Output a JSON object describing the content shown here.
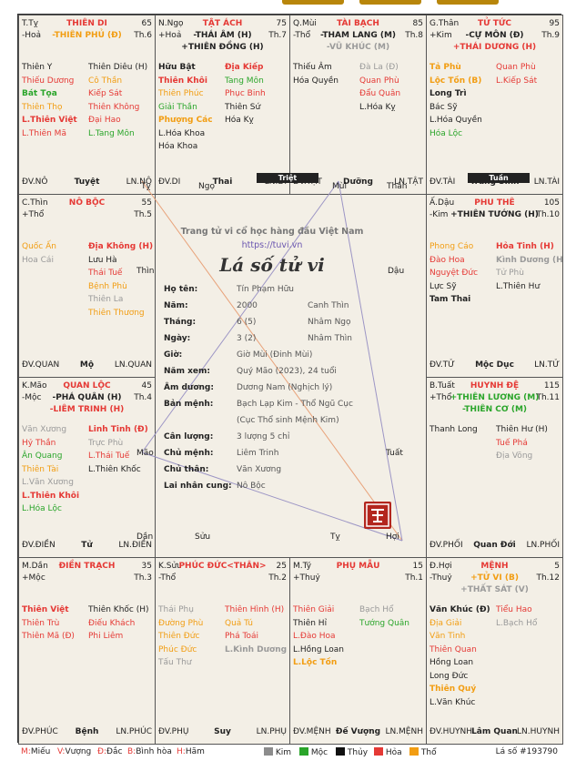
{
  "colors": {
    "kim": "#8c8c8c",
    "moc": "#2aa52a",
    "thuy": "#111111",
    "hoa": "#e53935",
    "tho": "#f29d12"
  },
  "cells": [
    {
      "id": "ty",
      "name": "T.Tỵ",
      "palace": "THIÊN DI",
      "palace_color": "red",
      "age": "65",
      "element": "-Hoả",
      "main_star": "-THIÊN PHỦ (Đ)",
      "main_color": "org",
      "sub": "",
      "thang": "Th.6",
      "left": [
        {
          "t": "Thiên Y",
          "c": "blk"
        },
        {
          "t": "Thiếu Dương",
          "c": "red"
        },
        {
          "t": "Bát Tọa",
          "c": "grn",
          "b": 1
        },
        {
          "t": "Thiên Thọ",
          "c": "org"
        },
        {
          "t": "L.Thiên Việt",
          "c": "red",
          "b": 1
        },
        {
          "t": "L.Thiên Mã",
          "c": "red"
        }
      ],
      "right": [
        {
          "t": "Thiên Diêu (H)",
          "c": "blk"
        },
        {
          "t": "Cô Thần",
          "c": "org"
        },
        {
          "t": "Kiếp Sát",
          "c": "red"
        },
        {
          "t": "Thiên Không",
          "c": "red"
        },
        {
          "t": "Đại Hao",
          "c": "red"
        },
        {
          "t": "L.Tang Môn",
          "c": "grn"
        }
      ],
      "f1": "ĐV.NÔ",
      "f2": "Tuyệt",
      "f3": "LN.NÔ"
    },
    {
      "id": "ngo",
      "name": "N.Ngọ",
      "palace": "TẬT ÁCH",
      "palace_color": "red",
      "age": "75",
      "element": "+Hoả",
      "main_star": "-THÁI ÂM (H)",
      "main_color": "blk",
      "sub": "+THIÊN ĐỒNG (H)",
      "sub_color": "blk",
      "thang": "Th.7",
      "left": [
        {
          "t": "Hữu Bật",
          "c": "blk",
          "b": 1
        },
        {
          "t": "Thiên Khôi",
          "c": "red",
          "b": 1
        },
        {
          "t": "Thiên Phúc",
          "c": "org"
        },
        {
          "t": "Giải Thần",
          "c": "grn"
        },
        {
          "t": "Phượng Các",
          "c": "org",
          "b": 1
        },
        {
          "t": "L.Hóa Khoa",
          "c": "blk"
        },
        {
          "t": "Hóa Khoa",
          "c": "blk"
        }
      ],
      "right": [
        {
          "t": "Địa Kiếp",
          "c": "red",
          "b": 1
        },
        {
          "t": "Tang Môn",
          "c": "grn"
        },
        {
          "t": "Phục Binh",
          "c": "red"
        },
        {
          "t": "Thiên Sứ",
          "c": "blk"
        },
        {
          "t": "Hóa Kỵ",
          "c": "blk"
        }
      ],
      "f1": "ĐV.DI",
      "f2": "Thai",
      "f3": "LN.DI"
    },
    {
      "id": "mui",
      "name": "Q.Mùi",
      "palace": "TÀI BẠCH",
      "palace_color": "org",
      "age": "85",
      "element": "-Thổ",
      "main_star": "-THAM LANG (M)",
      "main_color": "blk",
      "sub": "-VŨ KHÚC (M)",
      "sub_color": "gry",
      "thang": "Th.8",
      "left": [
        {
          "t": "Thiếu Âm",
          "c": "blk"
        },
        {
          "t": "Hóa Quyền",
          "c": "blk"
        }
      ],
      "right": [
        {
          "t": "Đà La (Đ)",
          "c": "gry"
        },
        {
          "t": "Quan Phù",
          "c": "red"
        },
        {
          "t": "Đẩu Quân",
          "c": "red"
        },
        {
          "t": "L.Hóa Kỵ",
          "c": "blk"
        }
      ],
      "f1": "ĐV.TẬT",
      "f2": "Dưỡng",
      "f3": "LN.TẬT"
    },
    {
      "id": "than",
      "name": "G.Thân",
      "palace": "TỬ TỨC",
      "palace_color": "gry",
      "age": "95",
      "element": "+Kim",
      "main_star": "-CỰ MÔN (Đ)",
      "main_color": "blk",
      "sub": "+THÁI DƯƠNG (H)",
      "sub_color": "red",
      "thang": "Th.9",
      "left": [
        {
          "t": "Tả Phù",
          "c": "org",
          "b": 1
        },
        {
          "t": "Lộc Tồn (B)",
          "c": "org",
          "b": 1
        },
        {
          "t": "Long Trì",
          "c": "blk",
          "b": 1
        },
        {
          "t": "Bác Sỹ",
          "c": "blk"
        },
        {
          "t": "L.Hóa Quyền",
          "c": "blk"
        },
        {
          "t": "Hóa Lộc",
          "c": "grn"
        }
      ],
      "right": [
        {
          "t": "Quan Phù",
          "c": "red"
        },
        {
          "t": "L.Kiếp Sát",
          "c": "red"
        }
      ],
      "f1": "ĐV.TÀI",
      "f2": "Tràng Sinh",
      "f3": "LN.TÀI"
    },
    {
      "id": "thin",
      "name": "C.Thìn",
      "palace": "NÔ BỘC",
      "palace_color": "org",
      "age": "55",
      "element": "+Thổ",
      "main_star": "",
      "sub": "",
      "thang": "Th.5",
      "left": [
        {
          "t": "Quốc Ấn",
          "c": "org"
        },
        {
          "t": "Hoa Cái",
          "c": "gry"
        }
      ],
      "right": [
        {
          "t": "Địa Không (H)",
          "c": "red",
          "b": 1
        },
        {
          "t": "Lưu Hà",
          "c": "blk"
        },
        {
          "t": "Thái Tuế",
          "c": "red"
        },
        {
          "t": "Bệnh Phù",
          "c": "org"
        },
        {
          "t": "Thiên La",
          "c": "gry"
        },
        {
          "t": "Thiên Thương",
          "c": "org"
        }
      ],
      "f1": "ĐV.QUAN",
      "f2": "Mộ",
      "f3": "LN.QUAN"
    },
    {
      "id": "dau",
      "name": "Ấ.Dậu",
      "palace": "PHU THÊ",
      "palace_color": "gry",
      "age": "105",
      "element": "-Kim",
      "main_star": "+THIÊN TƯỚNG (H)",
      "main_color": "blk",
      "sub": "",
      "thang": "Th.10",
      "left": [
        {
          "t": "Phong Cáo",
          "c": "org"
        },
        {
          "t": "Đào Hoa",
          "c": "red"
        },
        {
          "t": "Nguyệt Đức",
          "c": "red"
        },
        {
          "t": "Lực Sỹ",
          "c": "blk"
        },
        {
          "t": "Tam Thai",
          "c": "blk",
          "b": 1
        }
      ],
      "right": [
        {
          "t": "Hỏa Tinh (H)",
          "c": "red",
          "b": 1
        },
        {
          "t": "Kình Dương (H)",
          "c": "gry",
          "b": 1
        },
        {
          "t": "Tử Phù",
          "c": "gry"
        },
        {
          "t": "L.Thiên Hư",
          "c": "blk"
        }
      ],
      "f1": "ĐV.TỬ",
      "f2": "Mộc Dục",
      "f3": "LN.TỬ"
    },
    {
      "id": "mao",
      "name": "K.Mão",
      "palace": "QUAN LỘC",
      "palace_color": "grn",
      "age": "45",
      "element": "-Mộc",
      "main_star": "-PHÁ QUÂN (H)",
      "main_color": "blk",
      "sub": "-LIÊM TRINH (H)",
      "sub_color": "red",
      "thang": "Th.4",
      "left": [
        {
          "t": "Văn Xương",
          "c": "gry"
        },
        {
          "t": "Hỷ Thần",
          "c": "red"
        },
        {
          "t": "Ân Quang",
          "c": "grn"
        },
        {
          "t": "Thiên Tài",
          "c": "org"
        },
        {
          "t": "L.Văn Xương",
          "c": "gry"
        },
        {
          "t": "L.Thiên Khôi",
          "c": "red",
          "b": 1
        },
        {
          "t": "L.Hóa Lộc",
          "c": "grn"
        }
      ],
      "right": [
        {
          "t": "Linh Tinh (Đ)",
          "c": "red",
          "b": 1
        },
        {
          "t": "Trực Phù",
          "c": "gry"
        },
        {
          "t": "L.Thái Tuế",
          "c": "red"
        },
        {
          "t": "L.Thiên Khốc",
          "c": "blk"
        }
      ],
      "f1": "ĐV.ĐIỀN",
      "f2": "Tử",
      "f3": "LN.ĐIỀN"
    },
    {
      "id": "tuat",
      "name": "B.Tuất",
      "palace": "HUYNH ĐỆ",
      "palace_color": "org",
      "age": "115",
      "element": "+Thổ",
      "main_star": "+THIÊN LƯƠNG (M)",
      "main_color": "grn",
      "sub": "-THIÊN CƠ (M)",
      "sub_color": "grn",
      "thang": "Th.11",
      "left": [
        {
          "t": "Thanh Long",
          "c": "blk"
        }
      ],
      "right": [
        {
          "t": "Thiên Hư (H)",
          "c": "blk"
        },
        {
          "t": "Tuế Phá",
          "c": "red"
        },
        {
          "t": "Địa Võng",
          "c": "gry"
        }
      ],
      "f1": "ĐV.PHỐI",
      "f2": "Quan Đới",
      "f3": "LN.PHỐI"
    },
    {
      "id": "dan",
      "name": "M.Dần",
      "palace": "ĐIỀN TRẠCH",
      "palace_color": "grn",
      "age": "35",
      "element": "+Mộc",
      "main_star": "",
      "sub": "",
      "thang": "Th.3",
      "left": [
        {
          "t": "Thiên Việt",
          "c": "red",
          "b": 1
        },
        {
          "t": "Thiên Trù",
          "c": "red"
        },
        {
          "t": "Thiên Mã (Đ)",
          "c": "red"
        }
      ],
      "right": [
        {
          "t": "Thiên Khốc (H)",
          "c": "blk"
        },
        {
          "t": "Điếu Khách",
          "c": "red"
        },
        {
          "t": "Phi Liêm",
          "c": "red"
        }
      ],
      "f1": "ĐV.PHÚC",
      "f2": "Bệnh",
      "f3": "LN.PHÚC"
    },
    {
      "id": "suu",
      "name": "K.Sửu",
      "palace": "PHÚC ĐỨC<THÂN>",
      "palace_color": "org",
      "age": "25",
      "element": "-Thổ",
      "main_star": "",
      "sub": "",
      "thang": "Th.2",
      "left": [
        {
          "t": "Thái Phụ",
          "c": "gry"
        },
        {
          "t": "Đường Phù",
          "c": "org"
        },
        {
          "t": "Thiên Đức",
          "c": "org"
        },
        {
          "t": "Phúc Đức",
          "c": "org"
        },
        {
          "t": "Tấu Thư",
          "c": "gry"
        }
      ],
      "right": [
        {
          "t": "Thiên Hình (H)",
          "c": "red"
        },
        {
          "t": "Quả Tú",
          "c": "org"
        },
        {
          "t": "Phá Toái",
          "c": "red"
        },
        {
          "t": "L.Kình Dương",
          "c": "gry",
          "b": 1
        }
      ],
      "f1": "ĐV.PHỤ",
      "f2": "Suy",
      "f3": "LN.PHỤ"
    },
    {
      "id": "ti",
      "name": "M.Tý",
      "palace": "PHỤ MẪU",
      "palace_color": "blk",
      "age": "15",
      "element": "+Thuỷ",
      "main_star": "",
      "sub": "",
      "thang": "Th.1",
      "left": [
        {
          "t": "Thiên Giải",
          "c": "red"
        },
        {
          "t": "Thiên Hỉ",
          "c": "blk"
        },
        {
          "t": "L.Đào Hoa",
          "c": "red"
        },
        {
          "t": "L.Hồng Loan",
          "c": "blk"
        },
        {
          "t": "L.Lộc Tồn",
          "c": "org",
          "b": 1
        }
      ],
      "right": [
        {
          "t": "Bạch Hổ",
          "c": "gry"
        },
        {
          "t": "Tướng Quân",
          "c": "grn"
        }
      ],
      "f1": "ĐV.MỆNH",
      "f2": "Đế Vượng",
      "f3": "LN.MỆNH"
    },
    {
      "id": "hoi",
      "name": "Đ.Hợi",
      "palace": "MỆNH",
      "palace_color": "blk",
      "age": "5",
      "element": "-Thuỷ",
      "main_star": "+TỬ VI (B)",
      "main_color": "org",
      "sub": "+THẤT SÁT (V)",
      "sub_color": "gry",
      "thang": "Th.12",
      "left": [
        {
          "t": "Văn Khúc (Đ)",
          "c": "blk",
          "b": 1
        },
        {
          "t": "Địa Giải",
          "c": "org"
        },
        {
          "t": "Văn Tinh",
          "c": "org"
        },
        {
          "t": "Thiên Quan",
          "c": "red"
        },
        {
          "t": "Hồng Loan",
          "c": "blk"
        },
        {
          "t": "Long Đức",
          "c": "blk"
        },
        {
          "t": "Thiên Quý",
          "c": "org",
          "b": 1
        },
        {
          "t": "L.Văn Khúc",
          "c": "blk"
        }
      ],
      "right": [
        {
          "t": "Tiểu Hao",
          "c": "red"
        },
        {
          "t": "L.Bạch Hổ",
          "c": "gry"
        }
      ],
      "f1": "ĐV.HUYNH",
      "f2": "Lâm Quan",
      "f3": "LN.HUYNH"
    }
  ],
  "center": {
    "site_title": "Trang tử vi cổ học hàng đầu Việt Nam",
    "site_url": "https://tuvi.vn",
    "chart_title": "Lá số tử vi",
    "info": [
      {
        "k": "Họ tên:",
        "v": "Tín Phạm Hữu",
        "v2": ""
      },
      {
        "k": "Năm:",
        "v": "2000",
        "v2": "Canh Thìn"
      },
      {
        "k": "Tháng:",
        "v": "6 (5)",
        "v2": "Nhâm Ngọ"
      },
      {
        "k": "Ngày:",
        "v": "3 (2)",
        "v2": "Nhâm Thìn"
      },
      {
        "k": "Giờ:",
        "v": "Giờ Mùi (Đinh Mùi)",
        "v2": ""
      },
      {
        "k": "Năm xem:",
        "v": "Quý Mão (2023), 24 tuổi",
        "v2": ""
      },
      {
        "k": "Âm dương:",
        "v": "Dương Nam (Nghịch lý)",
        "v2": ""
      },
      {
        "k": "Bản mệnh:",
        "v": "Bạch Lạp Kim - Thổ Ngũ Cục",
        "v2": ""
      },
      {
        "k": "",
        "v": "(Cục Thổ sinh Mệnh Kim)",
        "v2": ""
      },
      {
        "k": "Cân lượng:",
        "v": "3 lượng 5 chỉ",
        "v2": ""
      },
      {
        "k": "Chủ mệnh:",
        "v": "Liêm Trinh",
        "v2": ""
      },
      {
        "k": "Chủ thân:",
        "v": "Văn Xương",
        "v2": ""
      },
      {
        "k": "Lai nhân cung:",
        "v": "Nô Bộc",
        "v2": ""
      }
    ],
    "seal": "TỬ VI",
    "triet": "Triệt",
    "tuan": "Tuần",
    "branches": {
      "hoi": "Hợi",
      "ty": "Tý",
      "suu": "Sửu",
      "dan": "Dần",
      "tuat": "Tuất",
      "mao": "Mão",
      "dau": "Dậu",
      "thin": "Thìn",
      "than": "Thân",
      "mui": "Mùi",
      "ngo": "Ngọ",
      "ti": "Tỵ"
    }
  },
  "legend": {
    "m": "M:",
    "m_t": "Miếu",
    "v": "V:",
    "v_t": "Vượng",
    "d": "Đ:",
    "d_t": "Đắc",
    "bh": "B:",
    "bh_t": "Bình hòa",
    "h": "H:",
    "h_t": "Hãm",
    "kim": "Kim",
    "moc": "Mộc",
    "thuy": "Thủy",
    "hoa": "Hỏa",
    "tho": "Thổ",
    "code": "Lá số #193790"
  }
}
